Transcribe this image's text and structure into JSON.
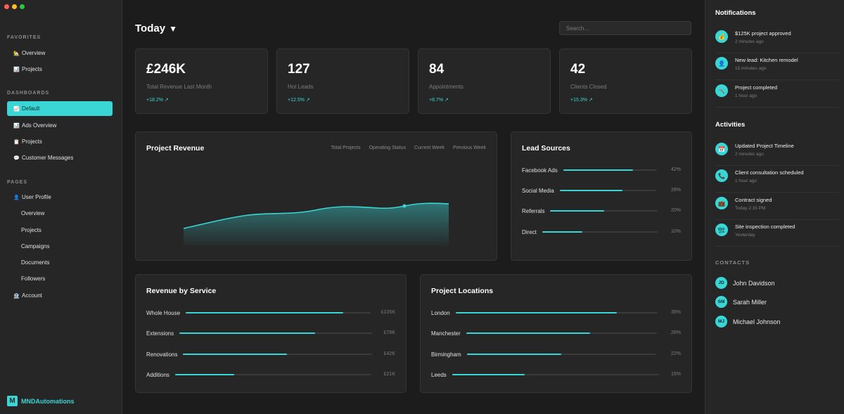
{
  "sidebar": {
    "favorites_title": "FAVORITES",
    "favorites": [
      {
        "label": "Overview",
        "icon": "🏡"
      },
      {
        "label": "Projects",
        "icon": "📊"
      }
    ],
    "dashboards_title": "DASHBOARDS",
    "dashboards": [
      {
        "label": "Default",
        "icon": "📈",
        "active": true
      },
      {
        "label": "Ads Overview",
        "icon": "📊"
      },
      {
        "label": "Projects",
        "icon": "📋"
      },
      {
        "label": "Customer Messages",
        "icon": "💬"
      }
    ],
    "pages_title": "PAGES",
    "user_profile": {
      "label": "User Profile",
      "icon": "👤"
    },
    "profile_sub": [
      "Overview",
      "Projects",
      "Campaigns",
      "Documents",
      "Followers"
    ],
    "account": {
      "label": "Account",
      "icon": "🏦"
    },
    "brand": {
      "mark": "M",
      "name": "MNDAutomations"
    }
  },
  "header": {
    "title": "Today",
    "caret": "▼",
    "search_placeholder": "Search..."
  },
  "stats": [
    {
      "value": "£246K",
      "label": "Total Revenue Last Month",
      "delta": "+18.2% ↗"
    },
    {
      "value": "127",
      "label": "Hot Leads",
      "delta": "+12.5% ↗"
    },
    {
      "value": "84",
      "label": "Appointments",
      "delta": "+8.7% ↗"
    },
    {
      "value": "42",
      "label": "Clients Closed",
      "delta": "+15.3% ↗"
    }
  ],
  "project_revenue": {
    "title": "Project Revenue",
    "legend": [
      "Total Projects",
      "Operating Status",
      "Current Week",
      "Previous Week"
    ],
    "accent": "#3ad6d6"
  },
  "lead_sources": {
    "title": "Lead Sources",
    "items": [
      {
        "label": "Facebook Ads",
        "value": "42%",
        "fill": 0.75
      },
      {
        "label": "Social Media",
        "value": "28%",
        "fill": 0.65
      },
      {
        "label": "Referrals",
        "value": "20%",
        "fill": 0.5
      },
      {
        "label": "Direct",
        "value": "10%",
        "fill": 0.35
      }
    ]
  },
  "revenue_by_service": {
    "title": "Revenue by Service",
    "items": [
      {
        "label": "Whole House",
        "value": "£105K",
        "fill": 0.85
      },
      {
        "label": "Extensions",
        "value": "£78K",
        "fill": 0.7
      },
      {
        "label": "Renovations",
        "value": "£42K",
        "fill": 0.55
      },
      {
        "label": "Additions",
        "value": "£21K",
        "fill": 0.3
      }
    ]
  },
  "project_locations": {
    "title": "Project Locations",
    "items": [
      {
        "label": "London",
        "value": "35%",
        "fill": 0.8
      },
      {
        "label": "Manchester",
        "value": "28%",
        "fill": 0.65
      },
      {
        "label": "Birmingham",
        "value": "22%",
        "fill": 0.5
      },
      {
        "label": "Leeds",
        "value": "15%",
        "fill": 0.35
      }
    ]
  },
  "notifications": {
    "title": "Notifications",
    "items": [
      {
        "text": "$125K project approved",
        "time": "2 minutes ago",
        "icon": "💰"
      },
      {
        "text": "New lead: Kitchen remodel",
        "time": "15 minutes ago",
        "icon": "👤"
      },
      {
        "text": "Project completed",
        "time": "1 hour ago",
        "icon": "🔨"
      }
    ]
  },
  "activities": {
    "title": "Activities",
    "items": [
      {
        "text": "Updated Project Timeline",
        "time": "2 minutes ago",
        "icon": "📅"
      },
      {
        "text": "Client consultation scheduled",
        "time": "1 hour ago",
        "icon": "📞"
      },
      {
        "text": "Contract signed",
        "time": "Today 2:15 PM",
        "icon": "💼"
      },
      {
        "text": "Site inspection completed",
        "time": "Yesterday",
        "icon": "🏗"
      }
    ]
  },
  "contacts": {
    "title": "CONTACTS",
    "items": [
      {
        "initials": "JD",
        "name": "John Davidson"
      },
      {
        "initials": "SM",
        "name": "Sarah Miller"
      },
      {
        "initials": "MJ",
        "name": "Michael Johnson"
      }
    ]
  }
}
